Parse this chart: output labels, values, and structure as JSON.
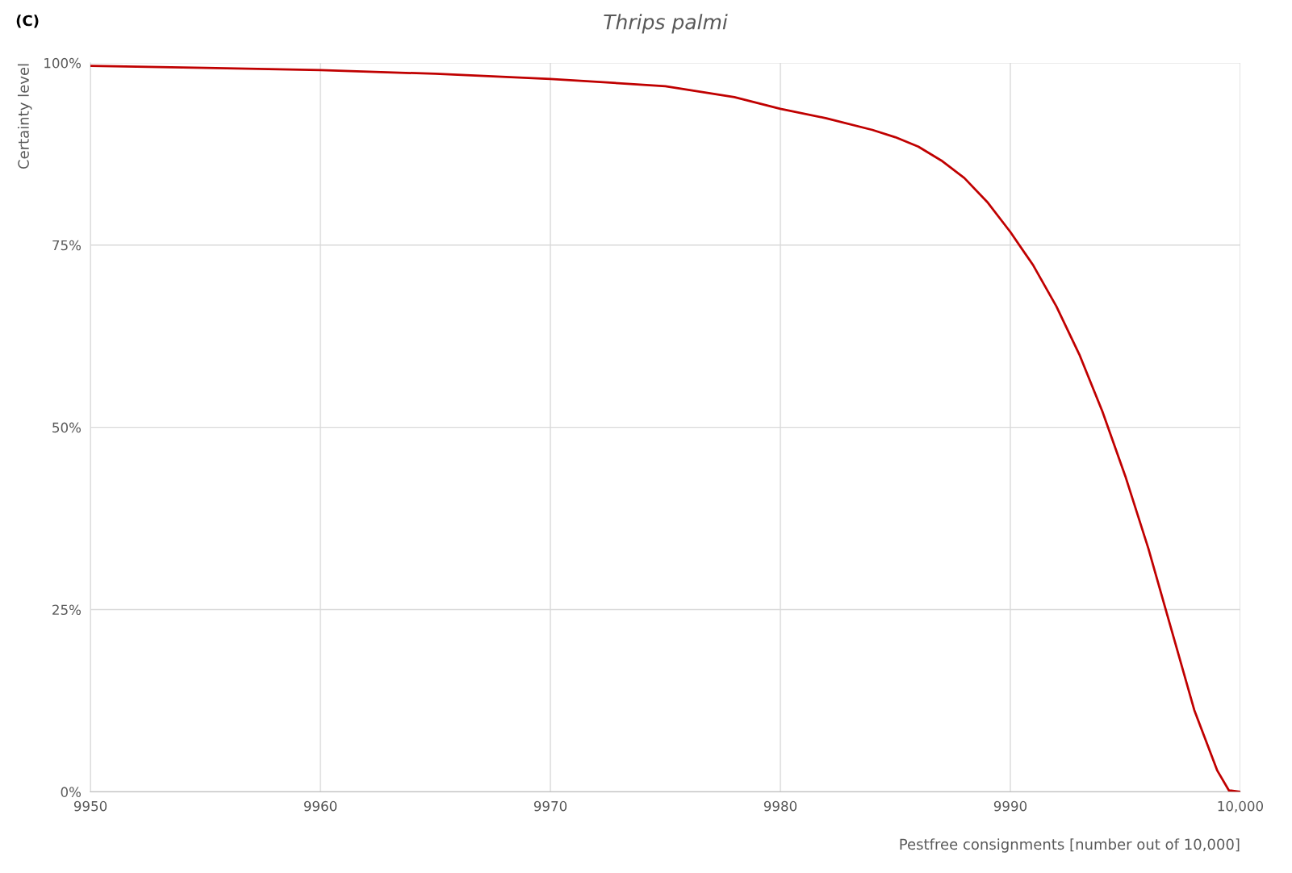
{
  "chart_data": {
    "type": "line",
    "title": "Thrips palmi",
    "xlabel": "Pestfree consignments [number out of 10,000]",
    "ylabel": "Certainty level",
    "annotations": [
      "(C)"
    ],
    "x": [
      9950,
      9955,
      9960,
      9965,
      9970,
      9975,
      9978,
      9980,
      9982,
      9984,
      9985,
      9986,
      9987,
      9988,
      9989,
      9990,
      9991,
      9992,
      9993,
      9994,
      9995,
      9996,
      9997,
      9998,
      9999,
      9999.5,
      10000
    ],
    "series": [
      {
        "color": "#c00000",
        "values": [
          99.6,
          99.3,
          99.0,
          98.5,
          97.8,
          96.8,
          95.3,
          93.7,
          92.4,
          90.8,
          89.8,
          88.5,
          86.6,
          84.2,
          80.9,
          76.8,
          72.2,
          66.6,
          60,
          52.2,
          43.3,
          33.4,
          22.3,
          11.2,
          2.9,
          0.2,
          0
        ]
      }
    ],
    "xlim": [
      9950,
      10000
    ],
    "ylim": [
      0,
      100
    ],
    "xticks": [
      9950,
      9960,
      9970,
      9980,
      9990,
      {
        "value": 10000,
        "label": "10,000"
      }
    ],
    "yticks": [
      {
        "value": 0,
        "label": "0%"
      },
      {
        "value": 25,
        "label": "25%"
      },
      {
        "value": 50,
        "label": "50%"
      },
      {
        "value": 75,
        "label": "75%"
      },
      {
        "value": 100,
        "label": "100%"
      }
    ],
    "grid": true,
    "marker": "none",
    "line_style": "solid"
  }
}
